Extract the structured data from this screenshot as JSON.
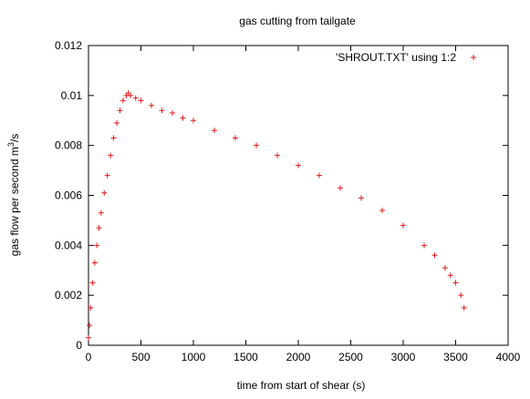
{
  "chart_data": {
    "type": "scatter",
    "title": "gas cutting from tailgate",
    "xlabel": "time from start of shear (s)",
    "ylabel_main": "gas flow per second m",
    "ylabel_sup": "3",
    "ylabel_tail": "/s",
    "xlim": [
      0,
      4000
    ],
    "ylim": [
      0,
      0.012
    ],
    "x_ticks": [
      0,
      500,
      1000,
      1500,
      2000,
      2500,
      3000,
      3500,
      4000
    ],
    "y_ticks": [
      "0",
      "0.002",
      "0.004",
      "0.006",
      "0.008",
      "0.01",
      "0.012"
    ],
    "grid": false,
    "legend_position": "top-right",
    "series": [
      {
        "name": "'SHROUT.TXT' using 1:2",
        "marker": "+",
        "color": "#e31a1c",
        "x": [
          0,
          10,
          20,
          40,
          60,
          80,
          100,
          120,
          150,
          180,
          210,
          240,
          270,
          300,
          330,
          360,
          380,
          400,
          450,
          500,
          600,
          700,
          800,
          900,
          1000,
          1200,
          1400,
          1600,
          1800,
          2000,
          2200,
          2400,
          2600,
          2800,
          3000,
          3200,
          3300,
          3400,
          3450,
          3500,
          3550,
          3580
        ],
        "y": [
          0.0003,
          0.0008,
          0.0015,
          0.0025,
          0.0033,
          0.004,
          0.0047,
          0.0053,
          0.0061,
          0.0068,
          0.0076,
          0.0083,
          0.0089,
          0.0094,
          0.0098,
          0.01,
          0.0101,
          0.01,
          0.0099,
          0.0098,
          0.0096,
          0.0094,
          0.0093,
          0.0091,
          0.009,
          0.0086,
          0.0083,
          0.008,
          0.0076,
          0.0072,
          0.0068,
          0.0063,
          0.0059,
          0.0054,
          0.0048,
          0.004,
          0.0036,
          0.0031,
          0.0028,
          0.0025,
          0.002,
          0.0015
        ]
      }
    ]
  }
}
